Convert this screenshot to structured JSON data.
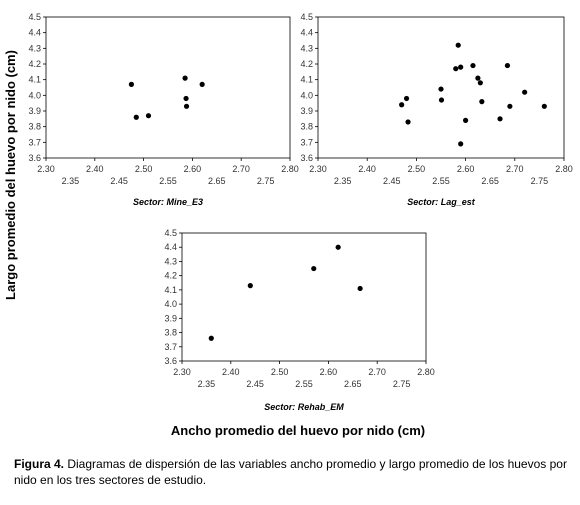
{
  "figure": {
    "y_axis_title": "Largo promedio del huevo por nido (cm)",
    "x_axis_title": "Ancho promedio del huevo por nido (cm)",
    "caption_label": "Figura 4.",
    "caption_text": " Diagramas de dispersión de las variables ancho promedio y largo promedio de los huevos por nido en los tres sectores de estudio."
  },
  "chart_data": [
    {
      "type": "scatter",
      "title": "Sector: Mine_E3",
      "x_ticks_top": [
        "2.30",
        "2.40",
        "2.50",
        "2.60",
        "2.70",
        "2.80"
      ],
      "x_ticks_bottom": [
        "2.35",
        "2.45",
        "2.55",
        "2.65",
        "2.75"
      ],
      "y_ticks": [
        "3.6",
        "3.7",
        "3.8",
        "3.9",
        "4.0",
        "4.1",
        "4.2",
        "4.3",
        "4.4",
        "4.5"
      ],
      "xlim": [
        2.3,
        2.8
      ],
      "ylim": [
        3.6,
        4.5
      ],
      "points": [
        [
          2.475,
          4.07
        ],
        [
          2.485,
          3.86
        ],
        [
          2.51,
          3.87
        ],
        [
          2.585,
          4.11
        ],
        [
          2.587,
          3.98
        ],
        [
          2.588,
          3.93
        ],
        [
          2.62,
          4.07
        ]
      ]
    },
    {
      "type": "scatter",
      "title": "Sector: Lag_est",
      "x_ticks_top": [
        "2.30",
        "2.40",
        "2.50",
        "2.60",
        "2.70",
        "2.80"
      ],
      "x_ticks_bottom": [
        "2.35",
        "2.45",
        "2.55",
        "2.65",
        "2.75"
      ],
      "y_ticks": [
        "3.6",
        "3.7",
        "3.8",
        "3.9",
        "4.0",
        "4.1",
        "4.2",
        "4.3",
        "4.4",
        "4.5"
      ],
      "xlim": [
        2.3,
        2.8
      ],
      "ylim": [
        3.6,
        4.5
      ],
      "points": [
        [
          2.47,
          3.94
        ],
        [
          2.48,
          3.98
        ],
        [
          2.483,
          3.83
        ],
        [
          2.55,
          4.04
        ],
        [
          2.551,
          3.97
        ],
        [
          2.58,
          4.17
        ],
        [
          2.585,
          4.32
        ],
        [
          2.59,
          4.18
        ],
        [
          2.59,
          3.69
        ],
        [
          2.6,
          3.84
        ],
        [
          2.615,
          4.19
        ],
        [
          2.625,
          4.11
        ],
        [
          2.63,
          4.08
        ],
        [
          2.633,
          3.96
        ],
        [
          2.67,
          3.85
        ],
        [
          2.685,
          4.19
        ],
        [
          2.69,
          3.93
        ],
        [
          2.72,
          4.02
        ],
        [
          2.76,
          3.93
        ]
      ]
    },
    {
      "type": "scatter",
      "title": "Sector: Rehab_EM",
      "x_ticks_top": [
        "2.30",
        "2.40",
        "2.50",
        "2.60",
        "2.70",
        "2.80"
      ],
      "x_ticks_bottom": [
        "2.35",
        "2.45",
        "2.55",
        "2.65",
        "2.75"
      ],
      "y_ticks": [
        "3.6",
        "3.7",
        "3.8",
        "3.9",
        "4.0",
        "4.1",
        "4.2",
        "4.3",
        "4.4",
        "4.5"
      ],
      "xlim": [
        2.3,
        2.8
      ],
      "ylim": [
        3.6,
        4.5
      ],
      "points": [
        [
          2.36,
          3.76
        ],
        [
          2.44,
          4.13
        ],
        [
          2.57,
          4.25
        ],
        [
          2.62,
          4.4
        ],
        [
          2.665,
          4.11
        ]
      ]
    }
  ]
}
